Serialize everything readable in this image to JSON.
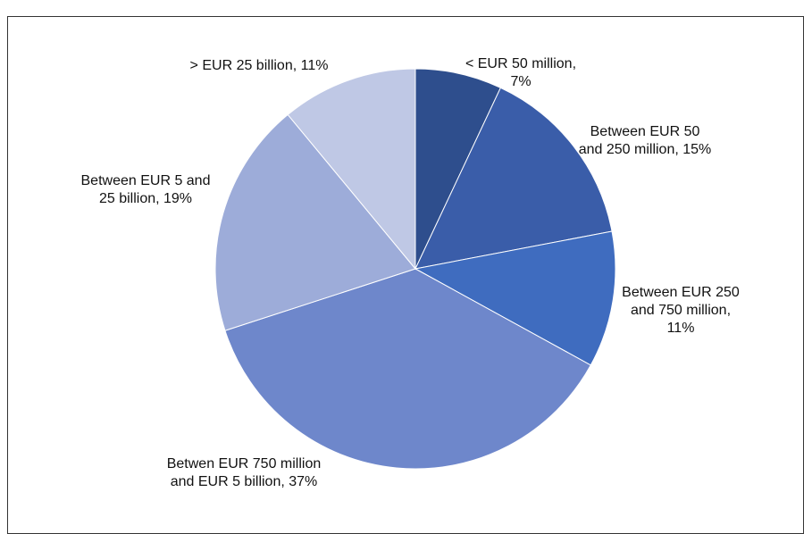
{
  "chart_data": {
    "type": "pie",
    "values": [
      7,
      15,
      11,
      37,
      19,
      11
    ],
    "value_labels": [
      "< EUR 50 million, 7%",
      "Between EUR 50 and 250 million, 15%",
      "Between EUR 250 and 750 million, 11%",
      "Betwen EUR 750 million and EUR 5 billion, 37%",
      "Between EUR 5 and 25 billion, 19%",
      "> EUR 25 billion, 11%"
    ],
    "colors": [
      "#2e4e8d",
      "#3a5da9",
      "#3f6cbf",
      "#6e87cb",
      "#9dacd9",
      "#bfc8e5"
    ]
  }
}
